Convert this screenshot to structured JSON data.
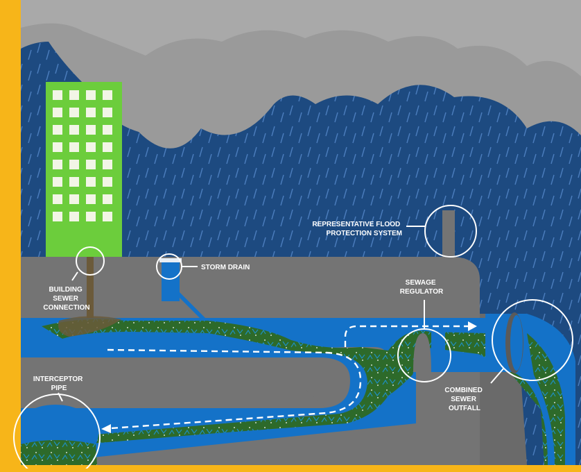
{
  "labels": {
    "building_sewer": [
      "BUILDING",
      "SEWER",
      "CONNECTION"
    ],
    "storm_drain": "STORM DRAIN",
    "flood_protection": [
      "REPRESENTATIVE FLOOD",
      "PROTECTION SYSTEM"
    ],
    "sewage_regulator": [
      "SEWAGE",
      "REGULATOR"
    ],
    "interceptor_pipe": [
      "INTERCEPTOR",
      "PIPE"
    ],
    "combined_sewer_outfall": [
      "COMBINED",
      "SEWER",
      "OUTFALL"
    ]
  },
  "colors": {
    "frame": "#f7b519",
    "sky": "#1d4a80",
    "cloud": "#9a9a9a",
    "ground": "#747474",
    "pipe": "#1472c8",
    "sewage": "#2d6a2a",
    "building": "#6ccd3c",
    "window": "#f2f5e6",
    "callout": "#ffffff"
  }
}
